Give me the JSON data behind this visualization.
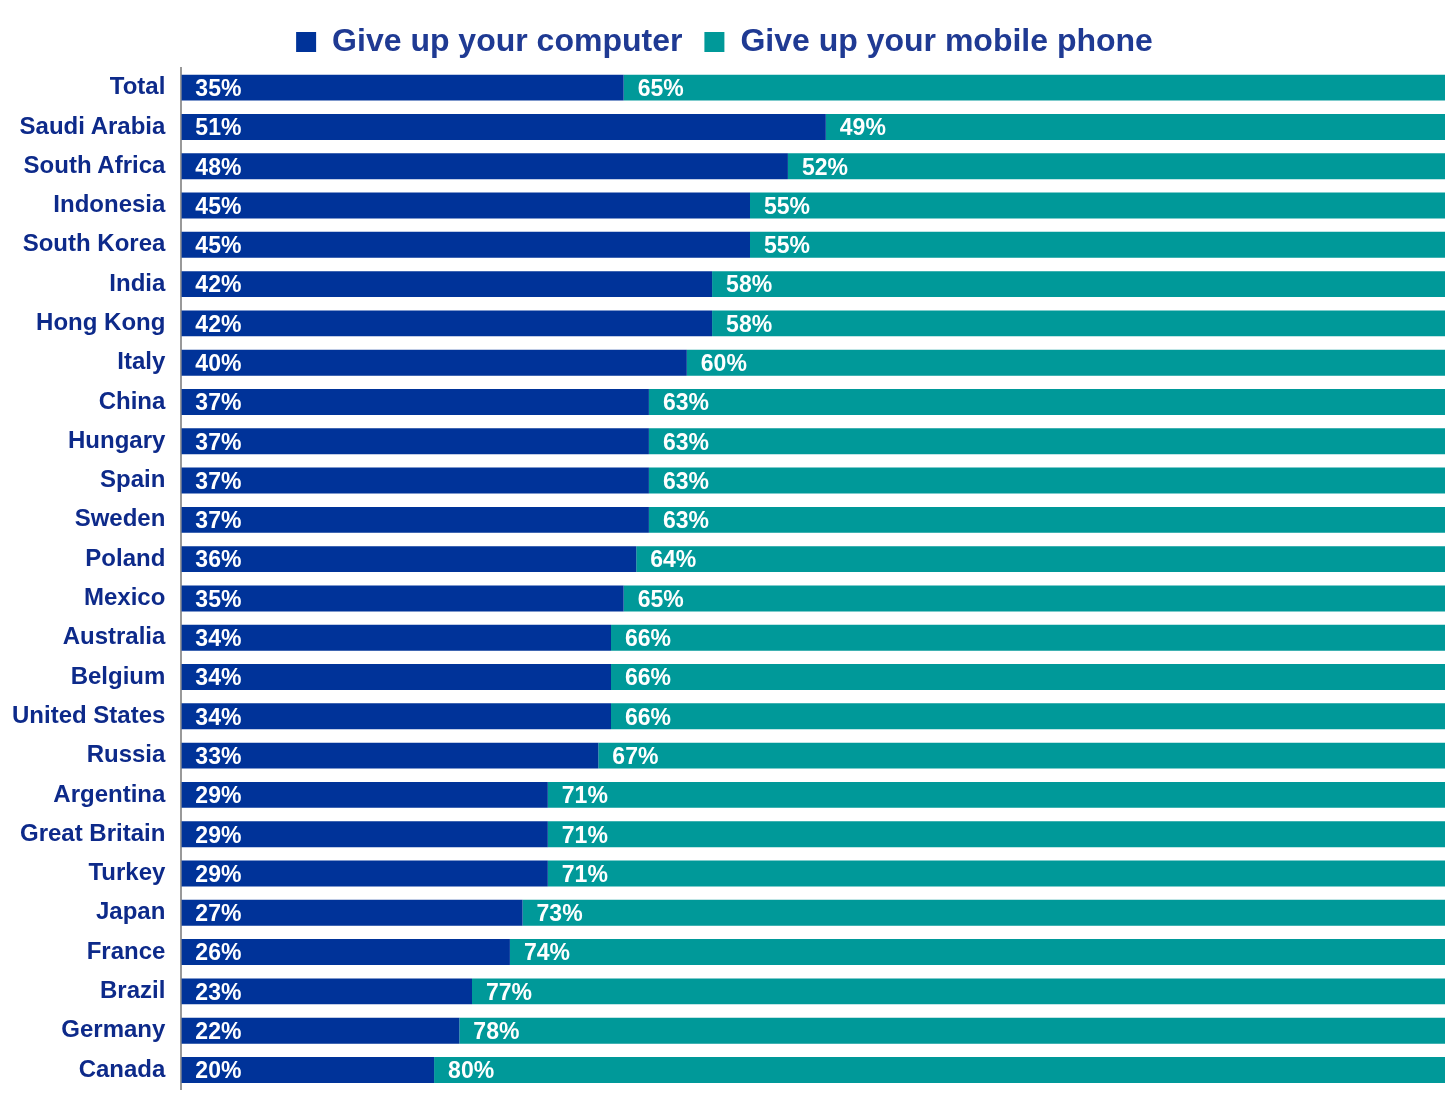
{
  "chart_data": {
    "type": "bar",
    "orientation": "horizontal",
    "stacked": true,
    "categories": [
      "Total",
      "Saudi Arabia",
      "South Africa",
      "Indonesia",
      "South Korea",
      "India",
      "Hong Kong",
      "Italy",
      "China",
      "Hungary",
      "Spain",
      "Sweden",
      "Poland",
      "Mexico",
      "Australia",
      "Belgium",
      "United States",
      "Russia",
      "Argentina",
      "Great Britain",
      "Turkey",
      "Japan",
      "France",
      "Brazil",
      "Germany",
      "Canada"
    ],
    "xlim": [
      0,
      100
    ],
    "tick_labels": "y",
    "legend": "top",
    "series": [
      {
        "name": "Give up your computer",
        "color": "#003399",
        "values": [
          35,
          51,
          48,
          45,
          45,
          42,
          42,
          40,
          37,
          37,
          37,
          37,
          36,
          35,
          34,
          34,
          34,
          33,
          29,
          29,
          29,
          27,
          26,
          23,
          22,
          20
        ],
        "value_labels": [
          "35%",
          "51%",
          "48%",
          "45%",
          "45%",
          "42%",
          "42%",
          "40%",
          "37%",
          "37%",
          "37%",
          "37%",
          "36%",
          "35%",
          "34%",
          "34%",
          "34%",
          "33%",
          "29%",
          "29%",
          "29%",
          "27%",
          "26%",
          "23%",
          "22%",
          "20%"
        ]
      },
      {
        "name": "Give up your mobile phone",
        "color": "#009999",
        "values": [
          65,
          49,
          52,
          55,
          55,
          58,
          58,
          60,
          63,
          63,
          63,
          63,
          64,
          65,
          66,
          66,
          66,
          67,
          71,
          71,
          71,
          73,
          74,
          77,
          78,
          80
        ],
        "value_labels": [
          "65%",
          "49%",
          "52%",
          "55%",
          "55%",
          "58%",
          "58%",
          "60%",
          "63%",
          "63%",
          "63%",
          "63%",
          "64%",
          "65%",
          "66%",
          "66%",
          "66%",
          "67%",
          "71%",
          "71%",
          "71%",
          "73%",
          "74%",
          "77%",
          "78%",
          "80%"
        ]
      }
    ]
  }
}
